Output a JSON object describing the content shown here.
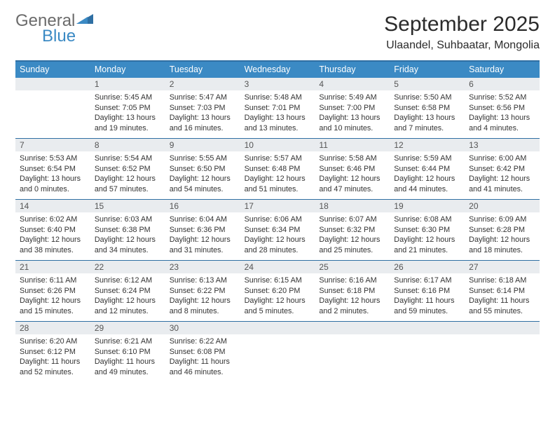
{
  "logo": {
    "general": "General",
    "blue": "Blue"
  },
  "title": "September 2025",
  "location": "Ulaandel, Suhbaatar, Mongolia",
  "colors": {
    "header_bg": "#3b8ac4",
    "header_text": "#ffffff",
    "rule": "#2f6fa3",
    "daynum_bg": "#e9ecef",
    "body_text": "#333333",
    "logo_gray": "#6b6b6b",
    "logo_blue": "#3b8ac4"
  },
  "typography": {
    "title_fontsize": 30,
    "location_fontsize": 16,
    "dayhead_fontsize": 12.5,
    "cell_fontsize": 10.8
  },
  "day_headers": [
    "Sunday",
    "Monday",
    "Tuesday",
    "Wednesday",
    "Thursday",
    "Friday",
    "Saturday"
  ],
  "weeks": [
    [
      null,
      {
        "n": "1",
        "sr": "5:45 AM",
        "ss": "7:05 PM",
        "dl": "13 hours and 19 minutes."
      },
      {
        "n": "2",
        "sr": "5:47 AM",
        "ss": "7:03 PM",
        "dl": "13 hours and 16 minutes."
      },
      {
        "n": "3",
        "sr": "5:48 AM",
        "ss": "7:01 PM",
        "dl": "13 hours and 13 minutes."
      },
      {
        "n": "4",
        "sr": "5:49 AM",
        "ss": "7:00 PM",
        "dl": "13 hours and 10 minutes."
      },
      {
        "n": "5",
        "sr": "5:50 AM",
        "ss": "6:58 PM",
        "dl": "13 hours and 7 minutes."
      },
      {
        "n": "6",
        "sr": "5:52 AM",
        "ss": "6:56 PM",
        "dl": "13 hours and 4 minutes."
      }
    ],
    [
      {
        "n": "7",
        "sr": "5:53 AM",
        "ss": "6:54 PM",
        "dl": "13 hours and 0 minutes."
      },
      {
        "n": "8",
        "sr": "5:54 AM",
        "ss": "6:52 PM",
        "dl": "12 hours and 57 minutes."
      },
      {
        "n": "9",
        "sr": "5:55 AM",
        "ss": "6:50 PM",
        "dl": "12 hours and 54 minutes."
      },
      {
        "n": "10",
        "sr": "5:57 AM",
        "ss": "6:48 PM",
        "dl": "12 hours and 51 minutes."
      },
      {
        "n": "11",
        "sr": "5:58 AM",
        "ss": "6:46 PM",
        "dl": "12 hours and 47 minutes."
      },
      {
        "n": "12",
        "sr": "5:59 AM",
        "ss": "6:44 PM",
        "dl": "12 hours and 44 minutes."
      },
      {
        "n": "13",
        "sr": "6:00 AM",
        "ss": "6:42 PM",
        "dl": "12 hours and 41 minutes."
      }
    ],
    [
      {
        "n": "14",
        "sr": "6:02 AM",
        "ss": "6:40 PM",
        "dl": "12 hours and 38 minutes."
      },
      {
        "n": "15",
        "sr": "6:03 AM",
        "ss": "6:38 PM",
        "dl": "12 hours and 34 minutes."
      },
      {
        "n": "16",
        "sr": "6:04 AM",
        "ss": "6:36 PM",
        "dl": "12 hours and 31 minutes."
      },
      {
        "n": "17",
        "sr": "6:06 AM",
        "ss": "6:34 PM",
        "dl": "12 hours and 28 minutes."
      },
      {
        "n": "18",
        "sr": "6:07 AM",
        "ss": "6:32 PM",
        "dl": "12 hours and 25 minutes."
      },
      {
        "n": "19",
        "sr": "6:08 AM",
        "ss": "6:30 PM",
        "dl": "12 hours and 21 minutes."
      },
      {
        "n": "20",
        "sr": "6:09 AM",
        "ss": "6:28 PM",
        "dl": "12 hours and 18 minutes."
      }
    ],
    [
      {
        "n": "21",
        "sr": "6:11 AM",
        "ss": "6:26 PM",
        "dl": "12 hours and 15 minutes."
      },
      {
        "n": "22",
        "sr": "6:12 AM",
        "ss": "6:24 PM",
        "dl": "12 hours and 12 minutes."
      },
      {
        "n": "23",
        "sr": "6:13 AM",
        "ss": "6:22 PM",
        "dl": "12 hours and 8 minutes."
      },
      {
        "n": "24",
        "sr": "6:15 AM",
        "ss": "6:20 PM",
        "dl": "12 hours and 5 minutes."
      },
      {
        "n": "25",
        "sr": "6:16 AM",
        "ss": "6:18 PM",
        "dl": "12 hours and 2 minutes."
      },
      {
        "n": "26",
        "sr": "6:17 AM",
        "ss": "6:16 PM",
        "dl": "11 hours and 59 minutes."
      },
      {
        "n": "27",
        "sr": "6:18 AM",
        "ss": "6:14 PM",
        "dl": "11 hours and 55 minutes."
      }
    ],
    [
      {
        "n": "28",
        "sr": "6:20 AM",
        "ss": "6:12 PM",
        "dl": "11 hours and 52 minutes."
      },
      {
        "n": "29",
        "sr": "6:21 AM",
        "ss": "6:10 PM",
        "dl": "11 hours and 49 minutes."
      },
      {
        "n": "30",
        "sr": "6:22 AM",
        "ss": "6:08 PM",
        "dl": "11 hours and 46 minutes."
      },
      null,
      null,
      null,
      null
    ]
  ],
  "labels": {
    "sunrise": "Sunrise:",
    "sunset": "Sunset:",
    "daylight": "Daylight:"
  }
}
